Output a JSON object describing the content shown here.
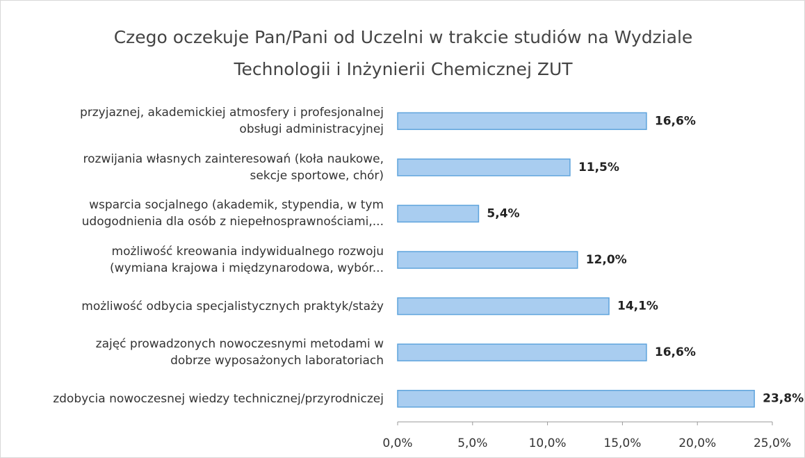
{
  "chart_data": {
    "type": "bar",
    "orientation": "horizontal",
    "title": "Czego oczekuje Pan/Pani od Uczelni w trakcie studiów na Wydziale\nTechnologii i Inżynierii Chemicznej ZUT",
    "categories": [
      "przyjaznej, akademickiej atmosfery i profesjonalnej\nobsługi administracyjnej",
      "rozwijania własnych zainteresowań (koła naukowe,\nsekcje sportowe, chór)",
      "wsparcia socjalnego (akademik,  stypendia,  w tym\nudogodnienia dla osób z niepełnosprawnościami,...",
      "możliwość kreowania indywidualnego rozwoju\n(wymiana krajowa i międzynarodowa, wybór...",
      "możliwość odbycia specjalistycznych praktyk/staży",
      "zajęć prowadzonych nowoczesnymi metodami w\ndobrze wyposażonych laboratoriach",
      "zdobycia nowoczesnej wiedzy technicznej/przyrodniczej"
    ],
    "values": [
      16.6,
      11.5,
      5.4,
      12.0,
      14.1,
      16.6,
      23.8
    ],
    "value_labels": [
      "16,6%",
      "11,5%",
      "5,4%",
      "12,0%",
      "14,1%",
      "16,6%",
      "23,8%"
    ],
    "color": "#a9cdf0",
    "xlim": [
      0,
      25
    ],
    "xticks": [
      {
        "value": 0,
        "label": "0,0%"
      },
      {
        "value": 5,
        "label": "5,0%"
      },
      {
        "value": 10,
        "label": "10,0%"
      },
      {
        "value": 15,
        "label": "15,0%"
      },
      {
        "value": 20,
        "label": "20,0%"
      },
      {
        "value": 25,
        "label": "25,0%"
      }
    ]
  }
}
